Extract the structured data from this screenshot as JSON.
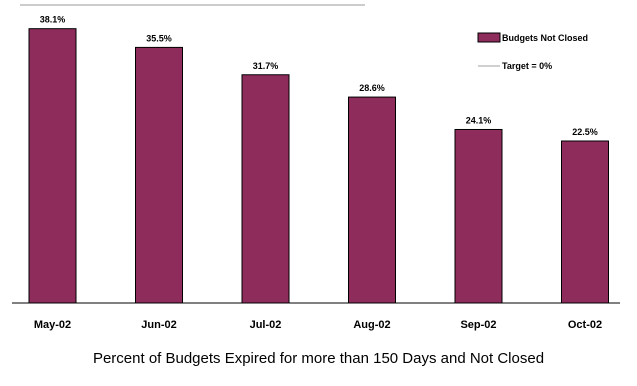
{
  "chart_data": {
    "type": "bar",
    "categories": [
      "May-02",
      "Jun-02",
      "Jul-02",
      "Aug-02",
      "Sep-02",
      "Oct-02"
    ],
    "values": [
      38.1,
      35.5,
      31.7,
      28.6,
      24.1,
      22.5
    ],
    "data_labels": [
      "38.1%",
      "35.5%",
      "31.7%",
      "28.6%",
      "24.1%",
      "22.5%"
    ],
    "series": [
      {
        "name": "Budgets Not Closed",
        "color": "#8e2c5c"
      },
      {
        "name": "Target = 0%",
        "color": "#c0c0c0"
      }
    ],
    "ylim": [
      0,
      40
    ],
    "grid": false,
    "legend_placement": "right",
    "caption": "Percent of Budgets Expired for more than 150 Days and Not Closed"
  }
}
